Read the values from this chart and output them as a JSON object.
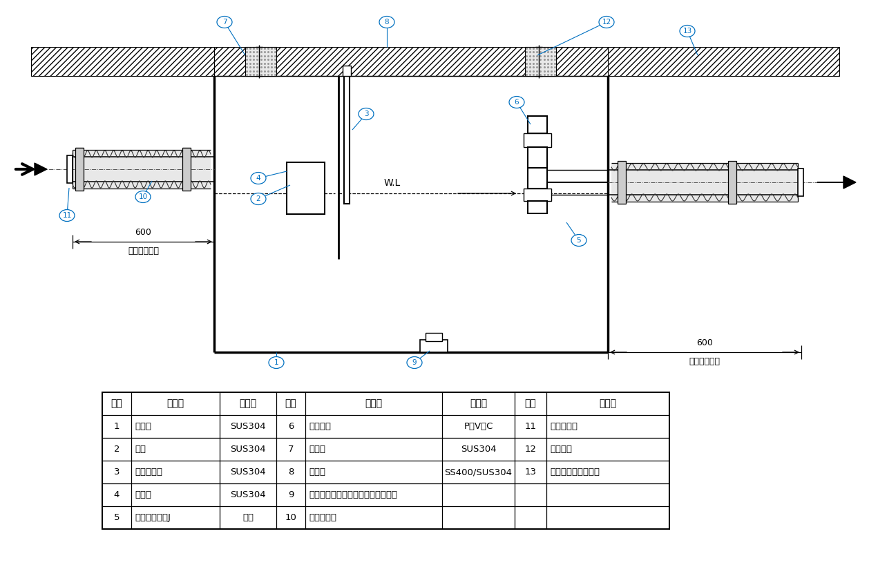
{
  "bg_color": "#ffffff",
  "line_color": "#000000",
  "circle_label_color": "#0070c0",
  "table_headers": [
    "部番",
    "品　名",
    "材　質",
    "部番",
    "品　名",
    "材　質",
    "部番",
    "品　名"
  ],
  "table_rows": [
    [
      "1",
      "本　体",
      "SUS304",
      "6",
      "トラップ",
      "P　V　C",
      "11",
      "固定バンド"
    ],
    [
      "2",
      "受笼",
      "SUS304",
      "7",
      "受　枕",
      "SUS304",
      "12",
      "埋め戻し"
    ],
    [
      "3",
      "スライド板",
      "SUS304",
      "8",
      "ふ　た",
      "SS400/SUS304",
      "13",
      "スラブコンクリート"
    ],
    [
      "4",
      "流入管",
      "SUS304",
      "9",
      "耘火被覆材（けい酸カルシウム板）",
      "",
      "",
      ""
    ],
    [
      "5",
      "フレキシブルJ",
      "ゴム",
      "10",
      "耘火被覆材",
      "",
      "",
      ""
    ]
  ],
  "dim_left": "600",
  "dim_right": "600",
  "bettsu": "【別途工事】",
  "wl": "W.L"
}
